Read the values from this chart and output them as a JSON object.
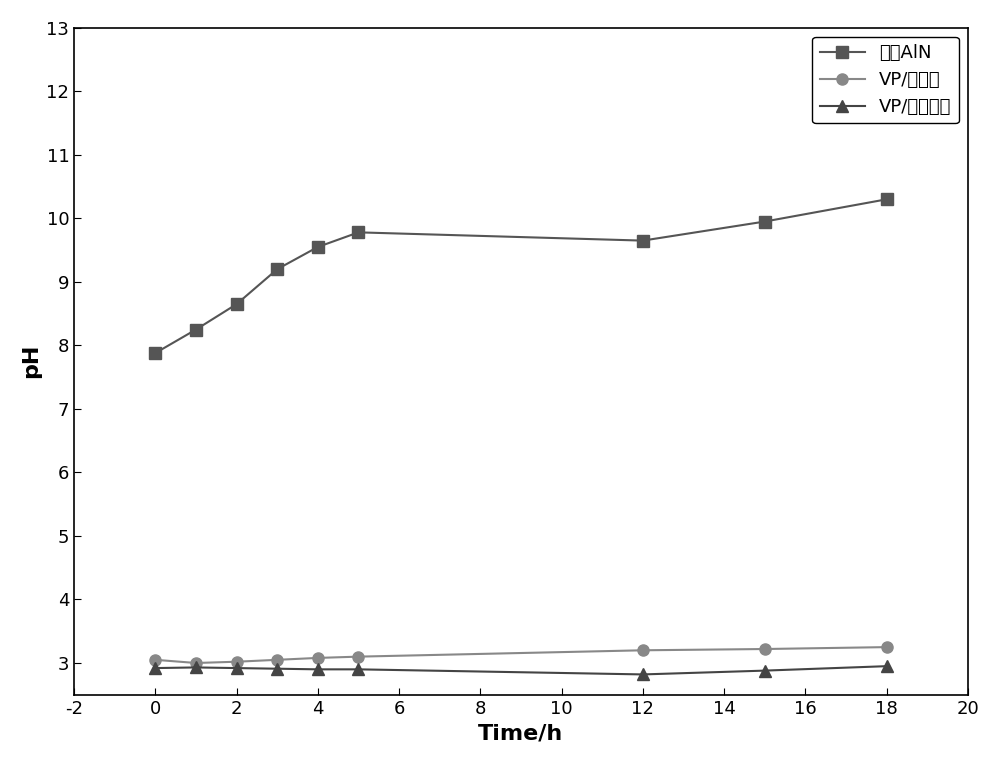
{
  "series1_label": "原始AlN",
  "series1_x": [
    0,
    1,
    2,
    3,
    4,
    5,
    12,
    15,
    18
  ],
  "series1_y": [
    7.88,
    8.25,
    8.65,
    9.2,
    9.55,
    9.78,
    9.65,
    9.95,
    10.3
  ],
  "series1_color": "#555555",
  "series1_marker": "s",
  "series2_label": "VP/衣康酸",
  "series2_x": [
    0,
    1,
    2,
    3,
    4,
    5,
    12,
    15,
    18
  ],
  "series2_y": [
    3.05,
    3.0,
    3.02,
    3.05,
    3.08,
    3.1,
    3.2,
    3.22,
    3.25
  ],
  "series2_color": "#888888",
  "series2_marker": "o",
  "series3_label": "VP/马米酸酐",
  "series3_x": [
    0,
    1,
    2,
    3,
    4,
    5,
    12,
    15,
    18
  ],
  "series3_y": [
    2.92,
    2.93,
    2.92,
    2.91,
    2.9,
    2.9,
    2.82,
    2.88,
    2.95
  ],
  "series3_color": "#444444",
  "series3_marker": "^",
  "xlabel": "Time/h",
  "ylabel": "pH",
  "xlim": [
    -2,
    20
  ],
  "ylim": [
    2.5,
    13
  ],
  "xticks": [
    -2,
    0,
    2,
    4,
    6,
    8,
    10,
    12,
    14,
    16,
    18,
    20
  ],
  "yticks": [
    3,
    4,
    5,
    6,
    7,
    8,
    9,
    10,
    11,
    12,
    13
  ],
  "background_color": "#ffffff",
  "line_color": "#555555",
  "legend_loc": "upper right"
}
